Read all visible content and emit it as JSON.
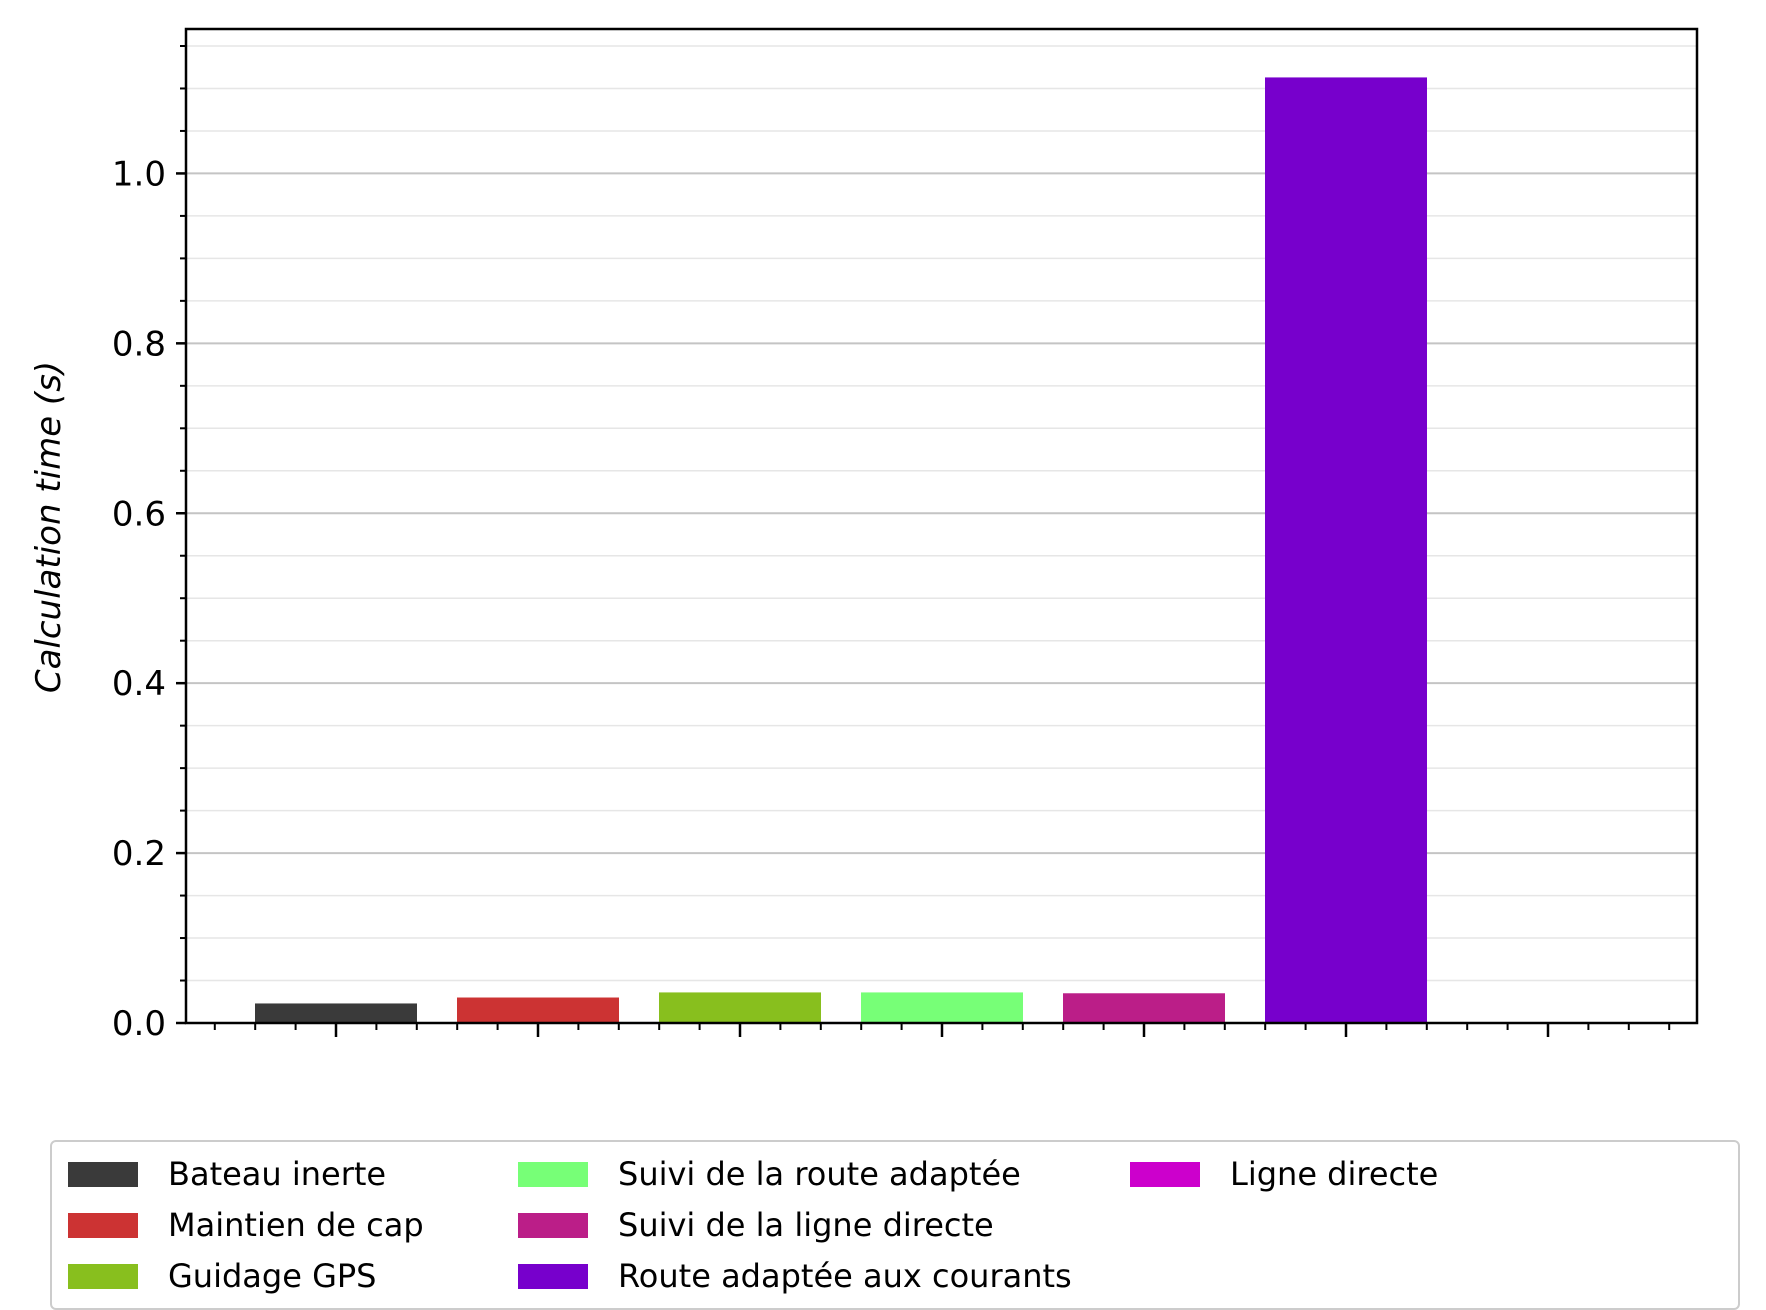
{
  "chart_data": {
    "type": "bar",
    "ylabel": "Calculation time (s)",
    "ylim": [
      0,
      1.17
    ],
    "yticks": [
      "0.0",
      "0.2",
      "0.4",
      "0.6",
      "0.8",
      "1.0"
    ],
    "grid": "major and minor horizontal",
    "legend_position": "below",
    "series": [
      {
        "name": "Bateau inerte",
        "value": 0.023,
        "color": "#3a3a3a"
      },
      {
        "name": "Maintien de cap",
        "value": 0.03,
        "color": "#cc3333"
      },
      {
        "name": "Guidage GPS",
        "value": 0.036,
        "color": "#88bf1e"
      },
      {
        "name": "Suivi de la route adaptée",
        "value": 0.036,
        "color": "#77ff77"
      },
      {
        "name": "Suivi de la ligne directe",
        "value": 0.035,
        "color": "#bb1e88"
      },
      {
        "name": "Route adaptée aux courants",
        "value": 1.113,
        "color": "#7700cc"
      },
      {
        "name": "Ligne directe",
        "value": 0.0,
        "color": "#cc00cc"
      }
    ]
  }
}
